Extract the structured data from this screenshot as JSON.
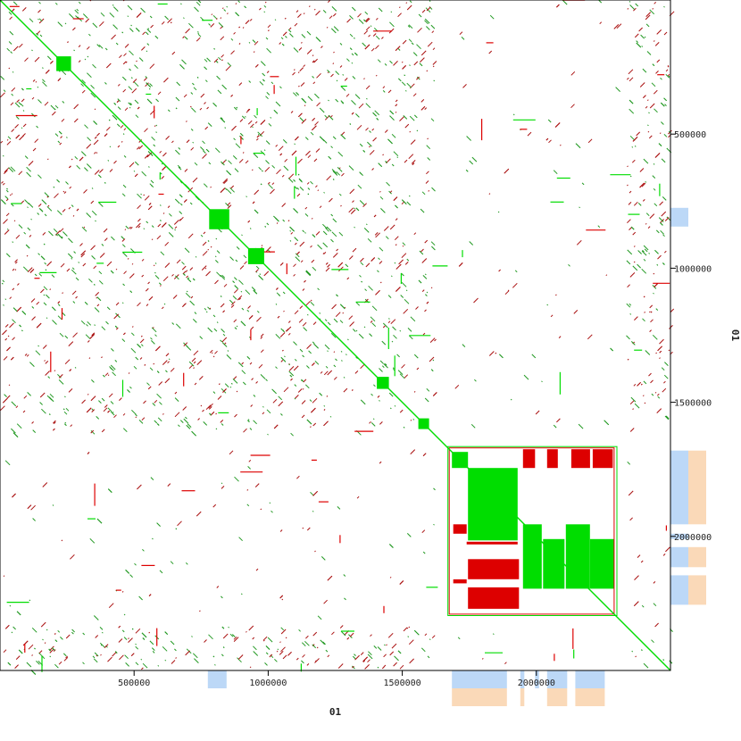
{
  "chart_data": {
    "type": "scatter",
    "subtype": "self-dotplot",
    "xlabel": "01",
    "ylabel": "01",
    "xlim": [
      0,
      2500000
    ],
    "ylim": [
      0,
      2500000
    ],
    "x_ticks": [
      500000,
      1000000,
      1500000,
      2000000
    ],
    "y_ticks": [
      500000,
      1000000,
      1500000,
      2000000
    ],
    "x_tick_labels": [
      "500000",
      "1000000",
      "1500000",
      "2000000"
    ],
    "y_tick_labels": [
      "500000",
      "1000000",
      "1500000",
      "2000000"
    ],
    "grid": false,
    "legend": "none",
    "colors": {
      "forward": "#00dd00",
      "reverse": "#dd0000",
      "forward_dark": "#229922",
      "reverse_dark": "#aa1111",
      "track_blue": "#bcd8f7",
      "track_peach": "#fad9b8",
      "frame": "#000000"
    },
    "series": [
      {
        "name": "forward",
        "diagonal": [
          [
            0,
            0
          ],
          [
            2500000,
            2500000
          ]
        ]
      }
    ],
    "forward_blocks": [
      {
        "x": [
          210000,
          265000
        ],
        "y": [
          210000,
          265000
        ]
      },
      {
        "x": [
          780000,
          855000
        ],
        "y": [
          780000,
          855000
        ]
      },
      {
        "x": [
          925000,
          985000
        ],
        "y": [
          925000,
          985000
        ]
      },
      {
        "x": [
          1405000,
          1450000
        ],
        "y": [
          1405000,
          1450000
        ]
      },
      {
        "x": [
          1560000,
          1600000
        ],
        "y": [
          1560000,
          1600000
        ]
      },
      {
        "x": [
          1685000,
          1745000
        ],
        "y": [
          1685000,
          1745000
        ]
      },
      {
        "x": [
          1745000,
          1930000
        ],
        "y": [
          1745000,
          2015000
        ]
      },
      {
        "x": [
          1950000,
          2020000
        ],
        "y": [
          1955000,
          2195000
        ]
      },
      {
        "x": [
          2025000,
          2105000
        ],
        "y": [
          2010000,
          2195000
        ]
      },
      {
        "x": [
          2110000,
          2200000
        ],
        "y": [
          1955000,
          2195000
        ]
      },
      {
        "x": [
          2200000,
          2290000
        ],
        "y": [
          2010000,
          2195000
        ]
      }
    ],
    "reverse_blocks": [
      {
        "x": [
          1950000,
          1995000
        ],
        "y": [
          1675000,
          1745000
        ]
      },
      {
        "x": [
          2040000,
          2080000
        ],
        "y": [
          1675000,
          1745000
        ]
      },
      {
        "x": [
          2130000,
          2200000
        ],
        "y": [
          1675000,
          1745000
        ]
      },
      {
        "x": [
          2210000,
          2285000
        ],
        "y": [
          1675000,
          1745000
        ]
      },
      {
        "x": [
          1690000,
          1740000
        ],
        "y": [
          1955000,
          1990000
        ]
      },
      {
        "x": [
          1740000,
          1930000
        ],
        "y": [
          2020000,
          2030000
        ]
      },
      {
        "x": [
          1745000,
          1935000
        ],
        "y": [
          2085000,
          2160000
        ]
      },
      {
        "x": [
          1745000,
          1935000
        ],
        "y": [
          2190000,
          2270000
        ]
      },
      {
        "x": [
          1690000,
          1740000
        ],
        "y": [
          2160000,
          2175000
        ]
      }
    ],
    "right_track": [
      {
        "y": [
          775000,
          845000
        ],
        "color": "blue"
      },
      {
        "y": [
          1680000,
          1955000
        ],
        "color": "blue"
      },
      {
        "y": [
          1680000,
          1955000
        ],
        "color": "peach"
      },
      {
        "y": [
          1990000,
          2010000
        ],
        "color": "blue"
      },
      {
        "y": [
          2040000,
          2115000
        ],
        "color": "blue"
      },
      {
        "y": [
          2040000,
          2115000
        ],
        "color": "peach"
      },
      {
        "y": [
          2145000,
          2255000
        ],
        "color": "blue"
      },
      {
        "y": [
          2145000,
          2255000
        ],
        "color": "peach"
      }
    ],
    "bottom_track": [
      {
        "x": [
          775000,
          845000
        ],
        "color": "blue"
      },
      {
        "x": [
          1685000,
          1890000
        ],
        "color": "blue"
      },
      {
        "x": [
          1685000,
          1890000
        ],
        "color": "peach"
      },
      {
        "x": [
          1940000,
          1955000
        ],
        "color": "blue"
      },
      {
        "x": [
          1940000,
          1955000
        ],
        "color": "peach"
      },
      {
        "x": [
          1995000,
          2010000
        ],
        "color": "blue"
      },
      {
        "x": [
          2040000,
          2115000
        ],
        "color": "blue"
      },
      {
        "x": [
          2040000,
          2115000
        ],
        "color": "peach"
      },
      {
        "x": [
          2145000,
          2255000
        ],
        "color": "blue"
      },
      {
        "x": [
          2145000,
          2255000
        ],
        "color": "peach"
      }
    ]
  }
}
